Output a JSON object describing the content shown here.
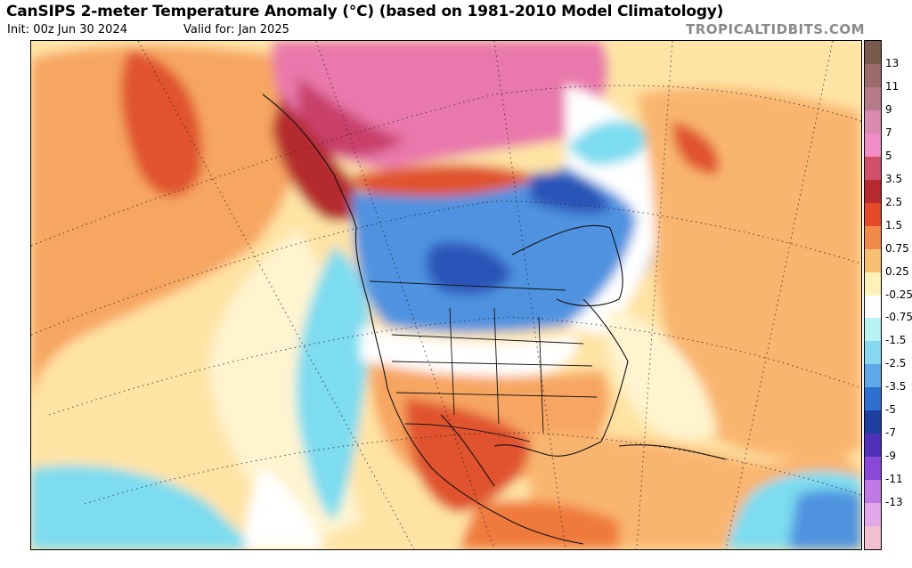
{
  "header": {
    "title": "CanSIPS 2-meter Temperature Anomaly (°C) (based on 1981-2010 Model Climatology)",
    "init": "Init: 00z Jun 30 2024",
    "valid": "Valid for: Jan 2025",
    "brand": "TROPICALTIDBITS.COM"
  },
  "colorbar": {
    "labels": [
      "13",
      "11",
      "9",
      "7",
      "5",
      "3.5",
      "2.5",
      "1.5",
      "0.75",
      "0.25",
      "-0.25",
      "-0.75",
      "-1.5",
      "-2.5",
      "-3.5",
      "-5",
      "-7",
      "-9",
      "-11",
      "-13"
    ],
    "colors": [
      "#7a5a4a",
      "#9b6a6a",
      "#b77a8a",
      "#d88ab0",
      "#f08cc8",
      "#d0506a",
      "#b82a30",
      "#e24a2a",
      "#f28a4a",
      "#f8bf70",
      "#fff2b8",
      "#ffffff",
      "#b8f4f4",
      "#86d8f0",
      "#5ca8e8",
      "#2f6fd0",
      "#1d3fa0",
      "#5030b8",
      "#8a48d8",
      "#c07ae8",
      "#e0a8e8",
      "#f0c0d0"
    ]
  },
  "map": {
    "field_colors": {
      "background": "#ffe9b0",
      "light_orange": "#fbc47a",
      "orange": "#f2934e",
      "red_orange": "#e0532d",
      "dark_red": "#b52a2e",
      "pink": "#e978ac",
      "magenta": "#c9416a",
      "light_blue": "#7ddcf0",
      "blue": "#4f93e0",
      "dark_blue": "#2a55b8",
      "white": "#ffffff"
    }
  }
}
